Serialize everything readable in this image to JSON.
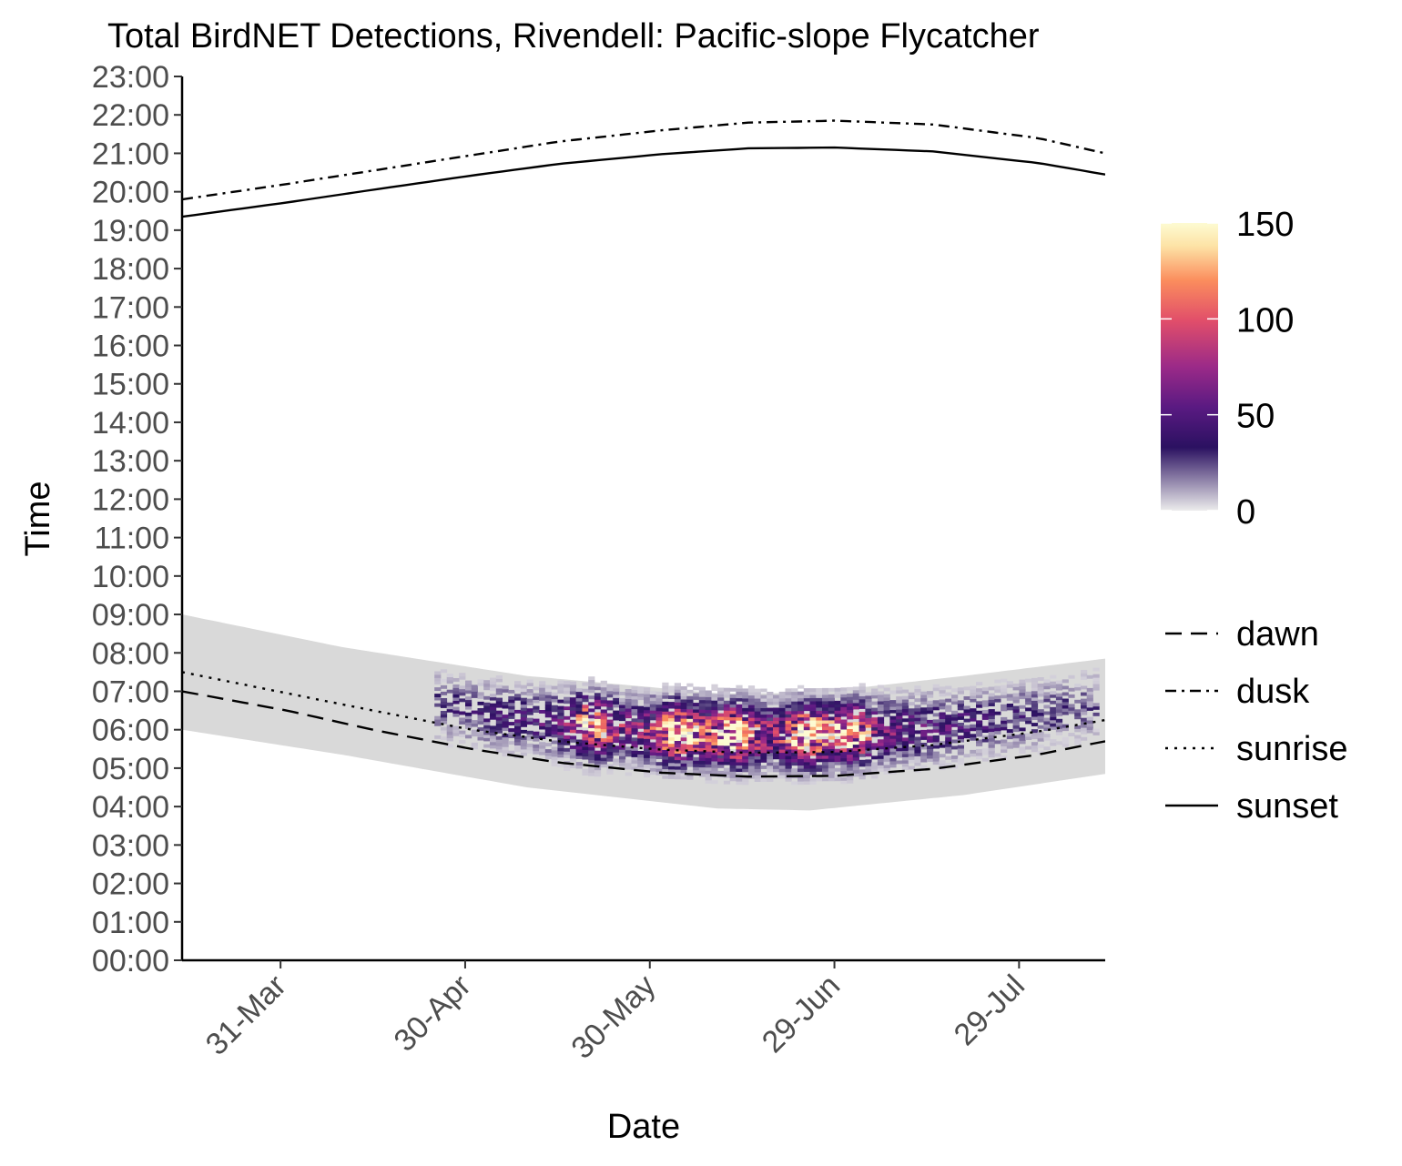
{
  "chart_data": {
    "type": "heatmap",
    "title": "Total BirdNET Detections, Rivendell: Pacific-slope Flycatcher",
    "xlabel": "Date",
    "ylabel": "Time",
    "x_range": [
      "2023-03-15",
      "2023-08-12"
    ],
    "x_ticks": [
      {
        "label": "31-Mar",
        "date": "2023-03-31"
      },
      {
        "label": "30-Apr",
        "date": "2023-04-30"
      },
      {
        "label": "30-May",
        "date": "2023-05-30"
      },
      {
        "label": "29-Jun",
        "date": "2023-06-29"
      },
      {
        "label": "29-Jul",
        "date": "2023-07-29"
      }
    ],
    "y_ticks": [
      "00:00",
      "01:00",
      "02:00",
      "03:00",
      "04:00",
      "05:00",
      "06:00",
      "07:00",
      "08:00",
      "09:00",
      "10:00",
      "11:00",
      "12:00",
      "13:00",
      "14:00",
      "15:00",
      "16:00",
      "17:00",
      "18:00",
      "19:00",
      "20:00",
      "21:00",
      "22:00",
      "23:00"
    ],
    "colorbar": {
      "range": [
        0,
        150
      ],
      "ticks": [
        "0",
        "50",
        "100",
        "150"
      ],
      "palette": [
        "#ececec",
        "#2b1161",
        "#5a1a82",
        "#9b2a88",
        "#e14e6a",
        "#fb8d5d",
        "#fde3a6",
        "#fdfbd2"
      ]
    },
    "recording_window_color": "#d9d9d9",
    "detection_core": {
      "start": "2023-04-30",
      "end": "2023-07-29",
      "peak_dates": [
        "2023-05-20",
        "2023-06-03",
        "2023-06-12",
        "2023-06-24",
        "2023-07-01"
      ],
      "max_count": 150
    },
    "recording_window": [
      {
        "date": "2023-03-15",
        "start_hour": 6.0,
        "end_hour": 9.0
      },
      {
        "date": "2023-04-10",
        "start_hour": 5.35,
        "end_hour": 8.15
      },
      {
        "date": "2023-05-10",
        "start_hour": 4.5,
        "end_hour": 7.4
      },
      {
        "date": "2023-06-10",
        "start_hour": 3.95,
        "end_hour": 6.95
      },
      {
        "date": "2023-06-25",
        "start_hour": 3.9,
        "end_hour": 6.95
      },
      {
        "date": "2023-07-20",
        "start_hour": 4.3,
        "end_hour": 7.4
      },
      {
        "date": "2023-08-12",
        "start_hour": 4.85,
        "end_hour": 7.85
      }
    ],
    "lines": [
      {
        "name": "dawn",
        "dash": "long-dash",
        "points": [
          {
            "date": "2023-03-15",
            "hour": 7.0
          },
          {
            "date": "2023-04-01",
            "hour": 6.5
          },
          {
            "date": "2023-04-15",
            "hour": 6.0
          },
          {
            "date": "2023-05-01",
            "hour": 5.5
          },
          {
            "date": "2023-05-15",
            "hour": 5.15
          },
          {
            "date": "2023-06-01",
            "hour": 4.88
          },
          {
            "date": "2023-06-15",
            "hour": 4.78
          },
          {
            "date": "2023-06-29",
            "hour": 4.8
          },
          {
            "date": "2023-07-15",
            "hour": 4.98
          },
          {
            "date": "2023-08-01",
            "hour": 5.35
          },
          {
            "date": "2023-08-12",
            "hour": 5.7
          }
        ]
      },
      {
        "name": "dusk",
        "dash": "dot-dash",
        "points": [
          {
            "date": "2023-03-15",
            "hour": 19.8
          },
          {
            "date": "2023-04-01",
            "hour": 20.2
          },
          {
            "date": "2023-04-15",
            "hour": 20.55
          },
          {
            "date": "2023-05-01",
            "hour": 20.95
          },
          {
            "date": "2023-05-15",
            "hour": 21.3
          },
          {
            "date": "2023-06-01",
            "hour": 21.6
          },
          {
            "date": "2023-06-15",
            "hour": 21.8
          },
          {
            "date": "2023-06-29",
            "hour": 21.85
          },
          {
            "date": "2023-07-15",
            "hour": 21.75
          },
          {
            "date": "2023-08-01",
            "hour": 21.4
          },
          {
            "date": "2023-08-12",
            "hour": 21.0
          }
        ]
      },
      {
        "name": "sunrise",
        "dash": "dotted",
        "points": [
          {
            "date": "2023-03-15",
            "hour": 7.5
          },
          {
            "date": "2023-04-01",
            "hour": 6.95
          },
          {
            "date": "2023-04-15",
            "hour": 6.5
          },
          {
            "date": "2023-05-01",
            "hour": 6.0
          },
          {
            "date": "2023-05-15",
            "hour": 5.7
          },
          {
            "date": "2023-06-01",
            "hour": 5.48
          },
          {
            "date": "2023-06-15",
            "hour": 5.4
          },
          {
            "date": "2023-06-29",
            "hour": 5.42
          },
          {
            "date": "2023-07-15",
            "hour": 5.6
          },
          {
            "date": "2023-08-01",
            "hour": 5.95
          },
          {
            "date": "2023-08-12",
            "hour": 6.25
          }
        ]
      },
      {
        "name": "sunset",
        "dash": "solid",
        "points": [
          {
            "date": "2023-03-15",
            "hour": 19.35
          },
          {
            "date": "2023-04-01",
            "hour": 19.72
          },
          {
            "date": "2023-04-15",
            "hour": 20.05
          },
          {
            "date": "2023-05-01",
            "hour": 20.42
          },
          {
            "date": "2023-05-15",
            "hour": 20.72
          },
          {
            "date": "2023-06-01",
            "hour": 20.98
          },
          {
            "date": "2023-06-15",
            "hour": 21.13
          },
          {
            "date": "2023-06-29",
            "hour": 21.15
          },
          {
            "date": "2023-07-15",
            "hour": 21.05
          },
          {
            "date": "2023-08-01",
            "hour": 20.75
          },
          {
            "date": "2023-08-12",
            "hour": 20.45
          }
        ]
      }
    ],
    "legend": {
      "placement": "right",
      "line_entries": [
        "dawn",
        "dusk",
        "sunrise",
        "sunset"
      ]
    }
  }
}
